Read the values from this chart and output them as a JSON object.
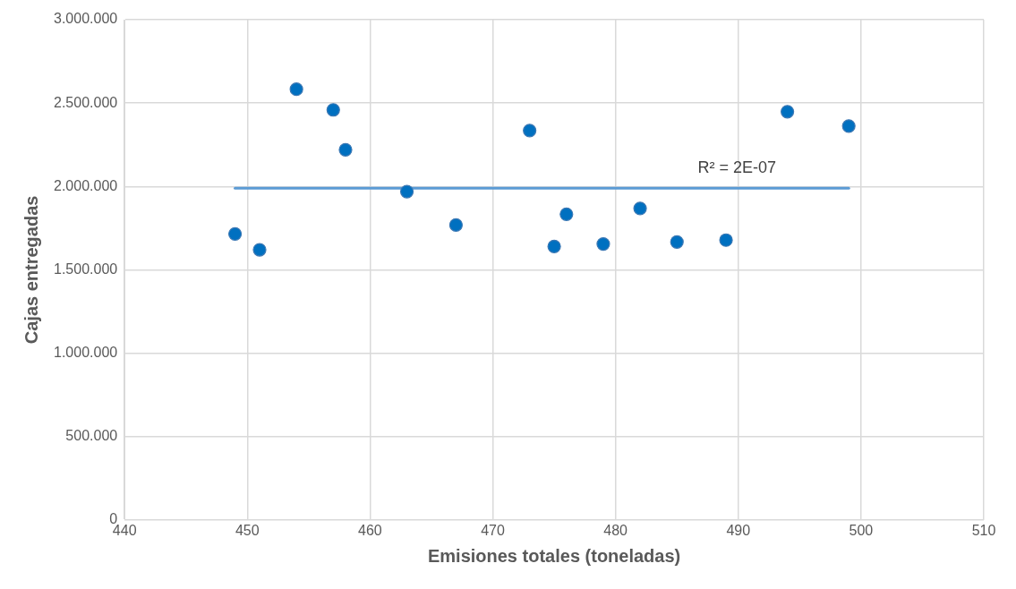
{
  "chart_data": {
    "type": "scatter",
    "xlabel": "Emisiones totales (toneladas)",
    "ylabel": "Cajas entregadas",
    "series": [
      {
        "type": "scatter",
        "color": "#0070c0",
        "marker": "circle",
        "x": [
          449,
          451,
          454,
          457,
          458,
          463,
          467,
          473,
          475,
          476,
          479,
          482,
          485,
          489,
          494,
          499
        ],
        "values": [
          1715000,
          1620000,
          2583000,
          2459000,
          2220000,
          1969000,
          1769000,
          2335000,
          1640000,
          1833000,
          1655000,
          1868000,
          1667000,
          1678000,
          2448000,
          2362000
        ]
      },
      {
        "type": "line",
        "color": "#5b9bd5",
        "marker": "none",
        "x": [
          449,
          499
        ],
        "values": [
          1990000,
          1990000
        ]
      }
    ],
    "annotations": [
      "R² = 2E-07"
    ],
    "xlim": [
      440,
      510
    ],
    "xticks": [
      440,
      450,
      460,
      470,
      480,
      490,
      500,
      510
    ],
    "ylim": [
      0,
      3000000
    ],
    "yticks": [
      0,
      {
        "value": 500000,
        "label": "500.000"
      },
      {
        "value": 1000000,
        "label": "1.000.000"
      },
      {
        "value": 1500000,
        "label": "1.500.000"
      },
      {
        "value": 2000000,
        "label": "2.000.000"
      },
      {
        "value": 2500000,
        "label": "2.500.000"
      },
      {
        "value": 3000000,
        "label": "3.000.000"
      }
    ],
    "grid": true,
    "legend": false
  }
}
